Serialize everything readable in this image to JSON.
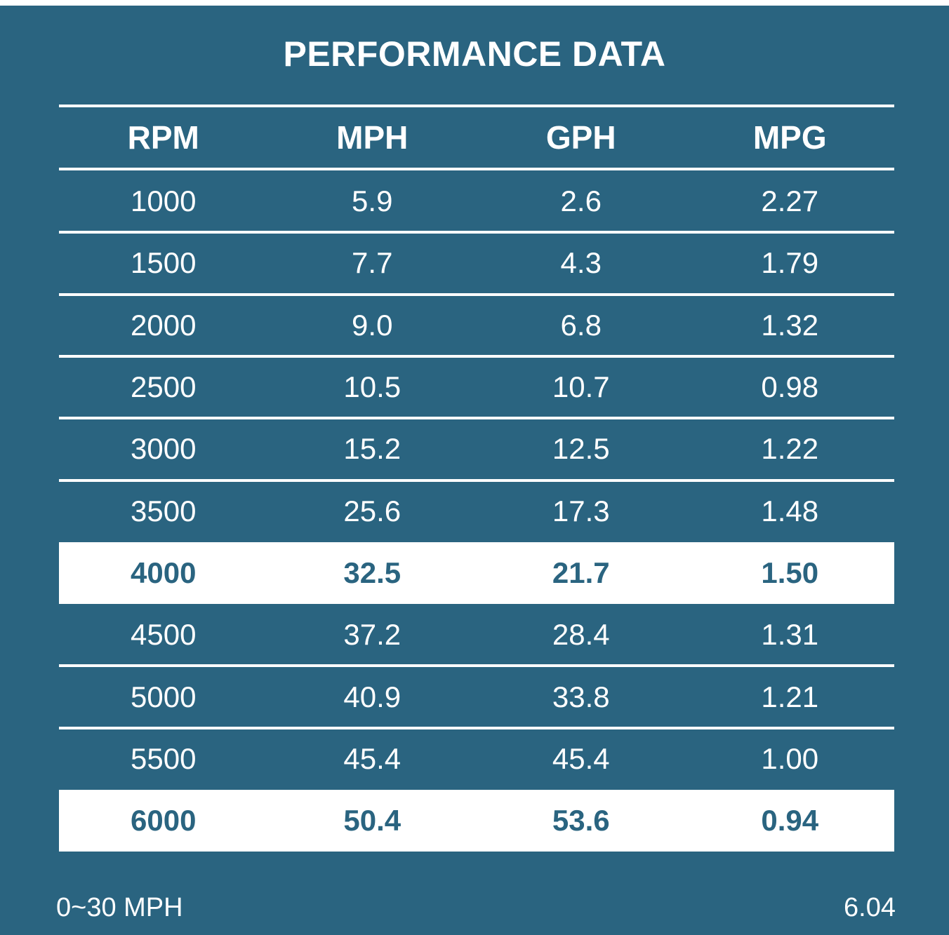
{
  "title": "PERFORMANCE DATA",
  "colors": {
    "background": "#2a6480",
    "text": "#ffffff",
    "highlight_background": "#ffffff",
    "highlight_text": "#2a6480"
  },
  "table": {
    "columns": [
      "RPM",
      "MPH",
      "GPH",
      "MPG"
    ],
    "rows": [
      {
        "cells": [
          "1000",
          "5.9",
          "2.6",
          "2.27"
        ],
        "highlight": false
      },
      {
        "cells": [
          "1500",
          "7.7",
          "4.3",
          "1.79"
        ],
        "highlight": false
      },
      {
        "cells": [
          "2000",
          "9.0",
          "6.8",
          "1.32"
        ],
        "highlight": false
      },
      {
        "cells": [
          "2500",
          "10.5",
          "10.7",
          "0.98"
        ],
        "highlight": false
      },
      {
        "cells": [
          "3000",
          "15.2",
          "12.5",
          "1.22"
        ],
        "highlight": false
      },
      {
        "cells": [
          "3500",
          "25.6",
          "17.3",
          "1.48"
        ],
        "highlight": false
      },
      {
        "cells": [
          "4000",
          "32.5",
          "21.7",
          "1.50"
        ],
        "highlight": true
      },
      {
        "cells": [
          "4500",
          "37.2",
          "28.4",
          "1.31"
        ],
        "highlight": false
      },
      {
        "cells": [
          "5000",
          "40.9",
          "33.8",
          "1.21"
        ],
        "highlight": false
      },
      {
        "cells": [
          "5500",
          "45.4",
          "45.4",
          "1.00"
        ],
        "highlight": false
      },
      {
        "cells": [
          "6000",
          "50.4",
          "53.6",
          "0.94"
        ],
        "highlight": true
      }
    ]
  },
  "footer": {
    "left": "0~30 MPH",
    "right": "6.04"
  }
}
